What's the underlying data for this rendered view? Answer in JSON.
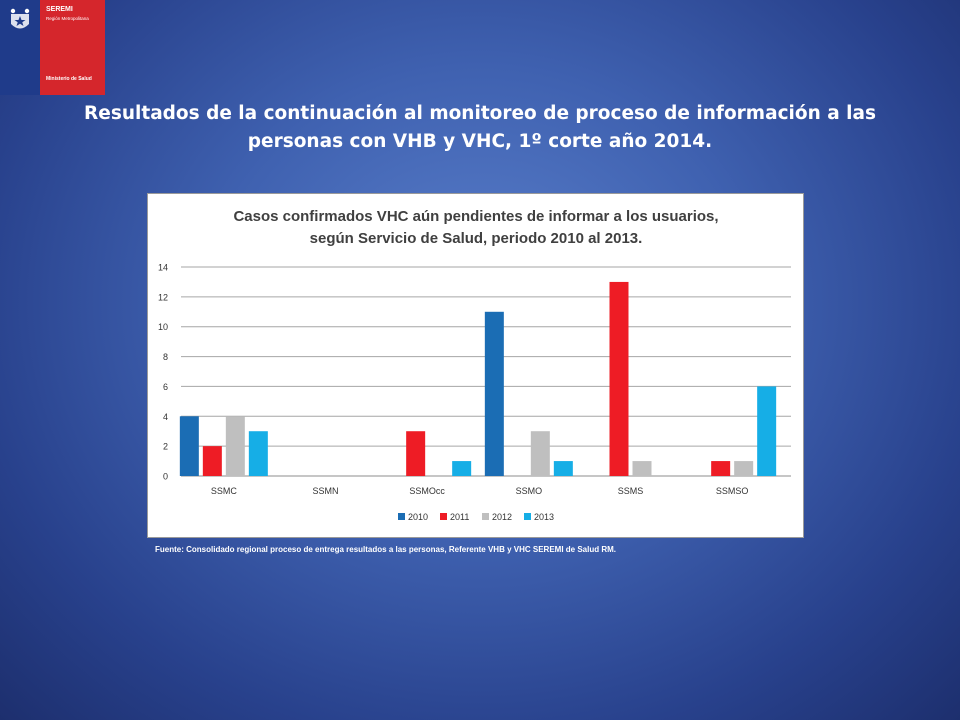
{
  "logo": {
    "line1": "SEREMI",
    "line2": "Región Metropolitana",
    "line3": "Ministerio de Salud"
  },
  "slide": {
    "title_line1": "Resultados de la continuación al monitoreo de proceso de información a las",
    "title_line2": "personas con VHB y VHC, 1º corte año 2014.",
    "source": "Fuente: Consolidado regional proceso de entrega resultados a las personas, Referente VHB y VHC SEREMI de Salud RM."
  },
  "colors": {
    "2010": "#1b6db4",
    "2011": "#ee1c25",
    "2012": "#bfbfbf",
    "2013": "#16aee6"
  },
  "chart_data": {
    "type": "bar",
    "title_line1": "Casos confirmados VHC aún pendientes de informar a los usuarios,",
    "title_line2": "según Servicio de Salud, periodo 2010 al 2013.",
    "categories": [
      "SSMC",
      "SSMN",
      "SSMOcc",
      "SSMO",
      "SSMS",
      "SSMSO"
    ],
    "series": [
      {
        "name": "2010",
        "values": [
          4,
          0,
          0,
          11,
          0,
          0
        ]
      },
      {
        "name": "2011",
        "values": [
          2,
          0,
          3,
          0,
          13,
          1
        ]
      },
      {
        "name": "2012",
        "values": [
          4,
          0,
          0,
          3,
          1,
          1
        ]
      },
      {
        "name": "2013",
        "values": [
          3,
          0,
          1,
          1,
          0,
          6
        ]
      }
    ],
    "ylim": [
      0,
      14
    ],
    "yticks": [
      0,
      2,
      4,
      6,
      8,
      10,
      12,
      14
    ],
    "grid": true,
    "legend": "bottom"
  }
}
